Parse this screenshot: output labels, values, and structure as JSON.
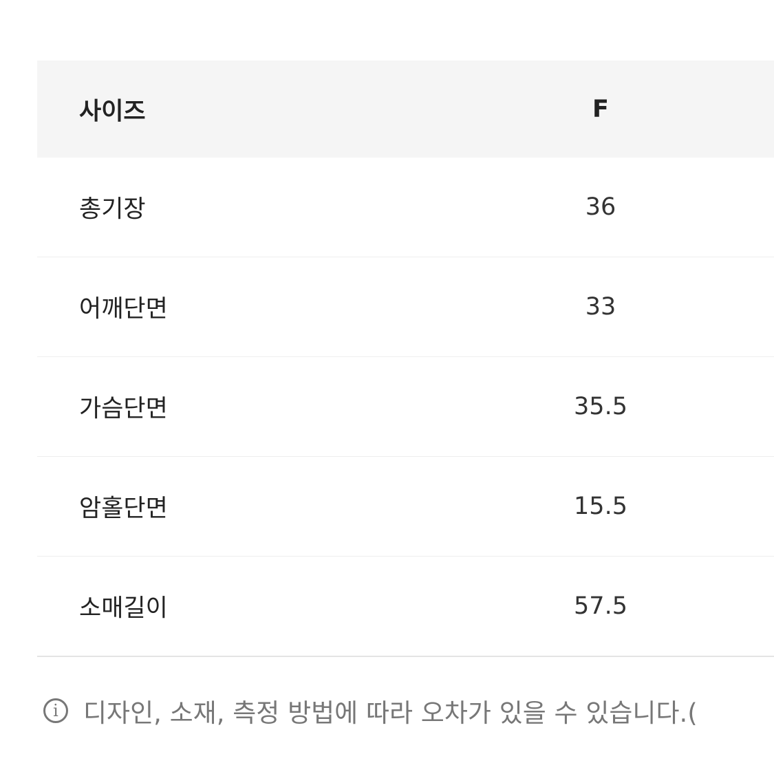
{
  "size_table": {
    "header": {
      "label": "사이즈",
      "value": "F"
    },
    "rows": [
      {
        "label": "총기장",
        "value": "36"
      },
      {
        "label": "어깨단면",
        "value": "33"
      },
      {
        "label": "가슴단면",
        "value": "35.5"
      },
      {
        "label": "암홀단면",
        "value": "15.5"
      },
      {
        "label": "소매길이",
        "value": "57.5"
      }
    ]
  },
  "footnote": {
    "icon": "info-icon",
    "text": "디자인, 소재, 측정 방법에 따라 오차가 있을 수 있습니다.("
  },
  "colors": {
    "header_bg": "#f5f5f5",
    "text": "#222222",
    "note": "#777777"
  }
}
